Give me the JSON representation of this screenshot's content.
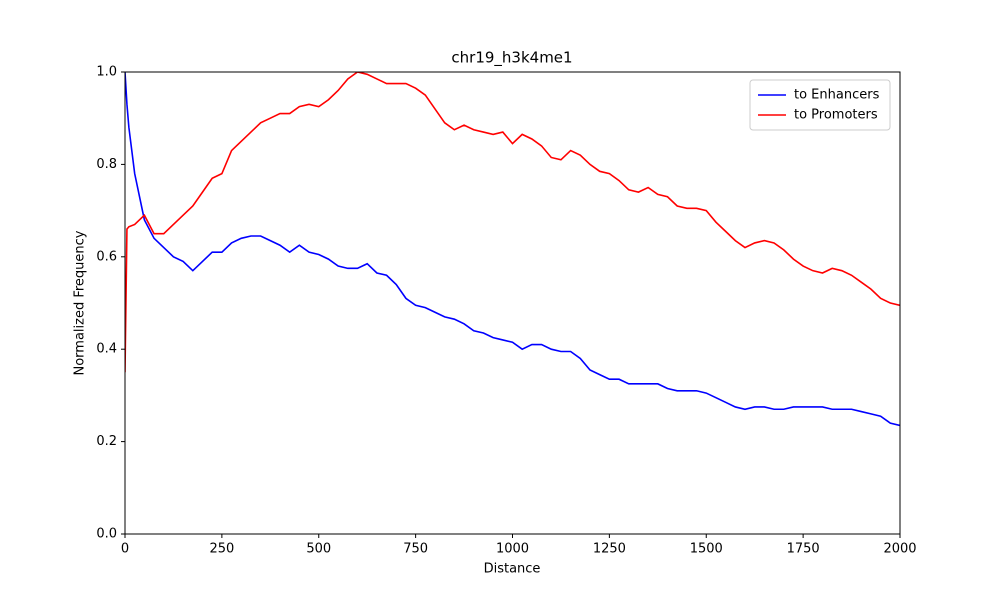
{
  "chart_data": {
    "type": "line",
    "title": "chr19_h3k4me1",
    "xlabel": "Distance",
    "ylabel": "Normalized Frequency",
    "x": [
      0,
      5,
      10,
      25,
      50,
      75,
      100,
      125,
      150,
      175,
      200,
      225,
      250,
      275,
      300,
      325,
      350,
      375,
      400,
      425,
      450,
      475,
      500,
      525,
      550,
      575,
      600,
      625,
      650,
      675,
      700,
      725,
      750,
      775,
      800,
      825,
      850,
      875,
      900,
      925,
      950,
      975,
      1000,
      1025,
      1050,
      1075,
      1100,
      1125,
      1150,
      1175,
      1200,
      1225,
      1250,
      1275,
      1300,
      1325,
      1350,
      1375,
      1400,
      1425,
      1450,
      1475,
      1500,
      1525,
      1550,
      1575,
      1600,
      1625,
      1650,
      1675,
      1700,
      1725,
      1750,
      1775,
      1800,
      1825,
      1850,
      1875,
      1900,
      1925,
      1950,
      1975,
      2000
    ],
    "series": [
      {
        "name": "to Enhancers",
        "color": "#0000ff",
        "values": [
          1.0,
          0.93,
          0.88,
          0.78,
          0.68,
          0.64,
          0.62,
          0.6,
          0.59,
          0.57,
          0.59,
          0.61,
          0.61,
          0.63,
          0.64,
          0.645,
          0.645,
          0.635,
          0.625,
          0.61,
          0.625,
          0.61,
          0.605,
          0.595,
          0.58,
          0.575,
          0.575,
          0.585,
          0.565,
          0.56,
          0.54,
          0.51,
          0.495,
          0.49,
          0.48,
          0.47,
          0.465,
          0.455,
          0.44,
          0.435,
          0.425,
          0.42,
          0.415,
          0.4,
          0.41,
          0.41,
          0.4,
          0.395,
          0.395,
          0.38,
          0.355,
          0.345,
          0.335,
          0.335,
          0.325,
          0.325,
          0.325,
          0.325,
          0.315,
          0.31,
          0.31,
          0.31,
          0.305,
          0.295,
          0.285,
          0.275,
          0.27,
          0.275,
          0.275,
          0.27,
          0.27,
          0.275,
          0.275,
          0.275,
          0.275,
          0.27,
          0.27,
          0.27,
          0.265,
          0.26,
          0.255,
          0.24,
          0.235
        ]
      },
      {
        "name": "to Promoters",
        "color": "#ff0000",
        "values": [
          0.35,
          0.66,
          0.665,
          0.67,
          0.69,
          0.65,
          0.65,
          0.67,
          0.69,
          0.71,
          0.74,
          0.77,
          0.78,
          0.83,
          0.85,
          0.87,
          0.89,
          0.9,
          0.91,
          0.91,
          0.925,
          0.93,
          0.925,
          0.94,
          0.96,
          0.985,
          1.0,
          0.995,
          0.985,
          0.975,
          0.975,
          0.975,
          0.965,
          0.95,
          0.92,
          0.89,
          0.875,
          0.885,
          0.875,
          0.87,
          0.865,
          0.87,
          0.845,
          0.865,
          0.855,
          0.84,
          0.815,
          0.81,
          0.83,
          0.82,
          0.8,
          0.785,
          0.78,
          0.765,
          0.745,
          0.74,
          0.75,
          0.735,
          0.73,
          0.71,
          0.705,
          0.705,
          0.7,
          0.675,
          0.655,
          0.635,
          0.62,
          0.63,
          0.635,
          0.63,
          0.615,
          0.595,
          0.58,
          0.57,
          0.565,
          0.575,
          0.57,
          0.56,
          0.545,
          0.53,
          0.51,
          0.5,
          0.495
        ]
      }
    ],
    "xlim": [
      0,
      2000
    ],
    "ylim": [
      0,
      1
    ],
    "xticks": [
      0,
      250,
      500,
      750,
      1000,
      1250,
      1500,
      1750,
      2000
    ],
    "yticks": [
      {
        "value": 0,
        "label": "0.0"
      },
      {
        "value": 0.2,
        "label": "0.2"
      },
      {
        "value": 0.4,
        "label": "0.4"
      },
      {
        "value": 0.6,
        "label": "0.6"
      },
      {
        "value": 0.8,
        "label": "0.8"
      },
      {
        "value": 1,
        "label": "1.0"
      }
    ],
    "legend": "upper right",
    "grid": false
  }
}
